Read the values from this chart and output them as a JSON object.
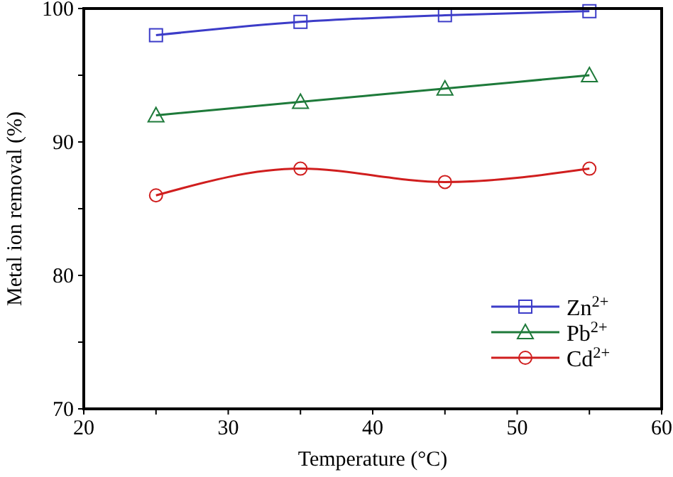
{
  "chart_data": {
    "type": "line",
    "xlabel": "Temperature (°C)",
    "ylabel": "Metal ion removal (%)",
    "x": [
      25,
      35,
      45,
      55
    ],
    "xlim": [
      20,
      60
    ],
    "xticks": [
      20,
      {
        "value": 25,
        "label": null
      },
      30,
      {
        "value": 35,
        "label": null
      },
      40,
      {
        "value": 45,
        "label": null
      },
      50,
      {
        "value": 55,
        "label": null
      },
      60
    ],
    "ylim": [
      70,
      100
    ],
    "yticks": [
      70,
      {
        "value": 75,
        "label": null
      },
      80,
      {
        "value": 85,
        "label": null
      },
      90,
      {
        "value": 95,
        "label": null
      },
      100
    ],
    "series": [
      {
        "name": "Zn$^{2+}$",
        "color": "#3c3cc8",
        "values": [
          98,
          99,
          99.5,
          99.8
        ],
        "marker": "square"
      },
      {
        "name": "Pb$^{2+}$",
        "color": "#1e7a3a",
        "values": [
          92,
          93,
          94,
          95
        ],
        "marker": "triangle"
      },
      {
        "name": "Cd$^{2+}$",
        "color": "#d01e1e",
        "values": [
          86,
          88,
          87,
          88
        ],
        "marker": "circle"
      }
    ],
    "legend": "bottom right",
    "grid": false,
    "line_style": "solid"
  }
}
